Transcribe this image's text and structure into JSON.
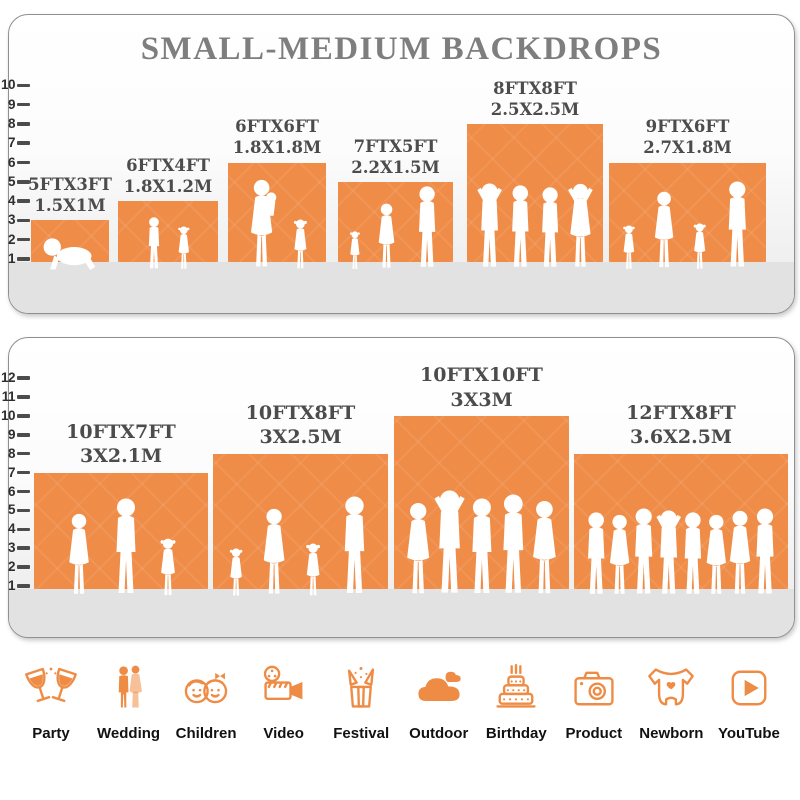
{
  "title": "SMALL-MEDIUM BACKDROPS",
  "colors": {
    "accent": "#EE8C45",
    "bar_orange": "#EF8D48",
    "title_gray": "#7E7E7E",
    "label_gray": "#4C4C4C",
    "floor_gray": "#E2E2E2",
    "silhouette": "#FFFFFF"
  },
  "panels": [
    {
      "name": "small-medium-sizes",
      "yticks": [
        1,
        2,
        3,
        4,
        5,
        6,
        7,
        8,
        9,
        10
      ],
      "bars": [
        {
          "label_ft": "5FTX3FT",
          "label_m": "1.5X1M",
          "width_ft": 5,
          "height_ft": 3,
          "people": [
            "baby"
          ]
        },
        {
          "label_ft": "6FTX4FT",
          "label_m": "1.8X1.2M",
          "width_ft": 6,
          "height_ft": 4,
          "people": [
            "boy",
            "girl"
          ]
        },
        {
          "label_ft": "6FTX6FT",
          "label_m": "1.8X1.8M",
          "width_ft": 6,
          "height_ft": 6,
          "people": [
            "mother",
            "girl"
          ]
        },
        {
          "label_ft": "7FTX5FT",
          "label_m": "2.2X1.5M",
          "width_ft": 7,
          "height_ft": 5,
          "people": [
            "girl",
            "woman",
            "man"
          ]
        },
        {
          "label_ft": "8FTX8FT",
          "label_m": "2.5X2.5M",
          "width_ft": 8,
          "height_ft": 8,
          "people": [
            "man-up",
            "man",
            "man",
            "woman-up"
          ]
        },
        {
          "label_ft": "9FTX6FT",
          "label_m": "2.7X1.8M",
          "width_ft": 9,
          "height_ft": 6,
          "people": [
            "girl",
            "woman",
            "girl",
            "man"
          ]
        }
      ]
    },
    {
      "name": "large-sizes",
      "yticks": [
        1,
        2,
        3,
        4,
        5,
        6,
        7,
        8,
        9,
        10,
        11,
        12
      ],
      "bars": [
        {
          "label_ft": "10FTX7FT",
          "label_m": "3X2.1M",
          "width_ft": 10,
          "height_ft": 7,
          "people": [
            "woman",
            "man",
            "girl"
          ]
        },
        {
          "label_ft": "10FTX8FT",
          "label_m": "3X2.5M",
          "width_ft": 10,
          "height_ft": 8,
          "people": [
            "girl",
            "woman",
            "girl",
            "man"
          ]
        },
        {
          "label_ft": "10FTX10FT",
          "label_m": "3X3M",
          "width_ft": 10,
          "height_ft": 10,
          "people": [
            "woman",
            "man-up",
            "man",
            "man",
            "woman"
          ]
        },
        {
          "label_ft": "12FTX8FT",
          "label_m": "3.6X2.5M",
          "width_ft": 12,
          "height_ft": 8,
          "people": [
            "man",
            "woman",
            "man",
            "man-up",
            "man",
            "woman",
            "woman",
            "man"
          ]
        }
      ]
    }
  ],
  "categories": [
    {
      "label": "Party",
      "icon": "party-icon"
    },
    {
      "label": "Wedding",
      "icon": "wedding-icon"
    },
    {
      "label": "Children",
      "icon": "children-icon"
    },
    {
      "label": "Video",
      "icon": "video-icon"
    },
    {
      "label": "Festival",
      "icon": "festival-icon"
    },
    {
      "label": "Outdoor",
      "icon": "outdoor-icon"
    },
    {
      "label": "Birthday",
      "icon": "birthday-icon"
    },
    {
      "label": "Product",
      "icon": "product-icon"
    },
    {
      "label": "Newborn",
      "icon": "newborn-icon"
    },
    {
      "label": "YouTube",
      "icon": "youtube-icon"
    }
  ],
  "chart_data": [
    {
      "type": "bar",
      "title": "SMALL-MEDIUM BACKDROPS",
      "categories": [
        "5FTX3FT (1.5X1M)",
        "6FTX4FT (1.8X1.2M)",
        "6FTX6FT (1.8X1.8M)",
        "7FTX5FT (2.2X1.5M)",
        "8FTX8FT (2.5X2.5M)",
        "9FTX6FT (2.7X1.8M)"
      ],
      "values": [
        3,
        4,
        6,
        5,
        8,
        6
      ],
      "xlabel": "",
      "ylabel": "",
      "ylim": [
        0,
        10
      ],
      "yticks": [
        1,
        2,
        3,
        4,
        5,
        6,
        7,
        8,
        9,
        10
      ],
      "grid": false,
      "legend": false,
      "bar_color": "#EF8D48"
    },
    {
      "type": "bar",
      "title": "",
      "categories": [
        "10FTX7FT (3X2.1M)",
        "10FTX8FT (3X2.5M)",
        "10FTX10FT (3X3M)",
        "12FTX8FT (3.6X2.5M)"
      ],
      "values": [
        7,
        8,
        10,
        8
      ],
      "xlabel": "",
      "ylabel": "",
      "ylim": [
        0,
        12
      ],
      "yticks": [
        1,
        2,
        3,
        4,
        5,
        6,
        7,
        8,
        9,
        10,
        11,
        12
      ],
      "grid": false,
      "legend": false,
      "bar_color": "#EF8D48"
    }
  ]
}
